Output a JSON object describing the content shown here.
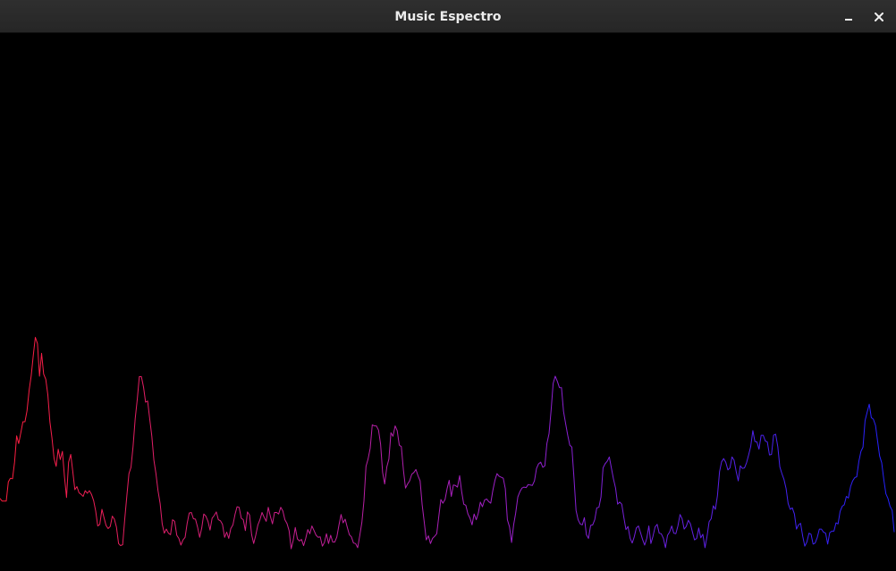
{
  "window": {
    "title": "Music Espectro",
    "minimize_icon": "minimize-icon",
    "close_icon": "close-icon"
  },
  "spectrum": {
    "background": "#000000",
    "color_start": "#ff1e3c",
    "color_mid": "#a020c8",
    "color_end": "#2222ff",
    "samples": [
      0.102,
      0.097,
      0.097,
      0.097,
      0.134,
      0.141,
      0.14,
      0.172,
      0.223,
      0.208,
      0.229,
      0.25,
      0.25,
      0.271,
      0.311,
      0.339,
      0.378,
      0.413,
      0.401,
      0.338,
      0.382,
      0.342,
      0.332,
      0.302,
      0.25,
      0.219,
      0.179,
      0.164,
      0.197,
      0.177,
      0.193,
      0.144,
      0.104,
      0.172,
      0.187,
      0.154,
      0.119,
      0.125,
      0.113,
      0.11,
      0.106,
      0.117,
      0.112,
      0.117,
      0.11,
      0.098,
      0.078,
      0.049,
      0.052,
      0.081,
      0.065,
      0.05,
      0.044,
      0.048,
      0.068,
      0.062,
      0.047,
      0.015,
      0.011,
      0.013,
      0.062,
      0.108,
      0.15,
      0.162,
      0.202,
      0.256,
      0.293,
      0.337,
      0.337,
      0.317,
      0.288,
      0.29,
      0.256,
      0.222,
      0.176,
      0.15,
      0.117,
      0.092,
      0.053,
      0.035,
      0.043,
      0.035,
      0.032,
      0.061,
      0.058,
      0.031,
      0.025,
      0.012,
      0.022,
      0.027,
      0.054,
      0.074,
      0.075,
      0.063,
      0.062,
      0.047,
      0.027,
      0.045,
      0.072,
      0.068,
      0.058,
      0.041,
      0.064,
      0.069,
      0.076,
      0.061,
      0.059,
      0.052,
      0.027,
      0.037,
      0.025,
      0.044,
      0.051,
      0.071,
      0.086,
      0.085,
      0.064,
      0.061,
      0.04,
      0.076,
      0.07,
      0.032,
      0.015,
      0.031,
      0.051,
      0.061,
      0.075,
      0.066,
      0.058,
      0.085,
      0.068,
      0.053,
      0.075,
      0.075,
      0.072,
      0.085,
      0.078,
      0.061,
      0.054,
      0.04,
      0.005,
      0.021,
      0.046,
      0.024,
      0.02,
      0.023,
      0.011,
      0.025,
      0.042,
      0.034,
      0.049,
      0.04,
      0.031,
      0.027,
      0.028,
      0.01,
      0.017,
      0.034,
      0.015,
      0.031,
      0.018,
      0.018,
      0.028,
      0.051,
      0.071,
      0.055,
      0.062,
      0.046,
      0.032,
      0.028,
      0.016,
      0.015,
      0.007,
      0.03,
      0.056,
      0.097,
      0.164,
      0.178,
      0.199,
      0.244,
      0.242,
      0.242,
      0.234,
      0.207,
      0.152,
      0.13,
      0.163,
      0.178,
      0.229,
      0.222,
      0.242,
      0.233,
      0.205,
      0.202,
      0.156,
      0.122,
      0.13,
      0.136,
      0.149,
      0.152,
      0.158,
      0.146,
      0.136,
      0.09,
      0.057,
      0.022,
      0.03,
      0.015,
      0.025,
      0.029,
      0.034,
      0.067,
      0.1,
      0.093,
      0.1,
      0.121,
      0.137,
      0.106,
      0.128,
      0.127,
      0.124,
      0.146,
      0.115,
      0.091,
      0.089,
      0.072,
      0.064,
      0.051,
      0.072,
      0.061,
      0.074,
      0.095,
      0.086,
      0.099,
      0.101,
      0.096,
      0.093,
      0.118,
      0.137,
      0.15,
      0.145,
      0.143,
      0.141,
      0.121,
      0.061,
      0.047,
      0.017,
      0.051,
      0.074,
      0.105,
      0.115,
      0.122,
      0.124,
      0.123,
      0.129,
      0.128,
      0.127,
      0.136,
      0.16,
      0.169,
      0.172,
      0.162,
      0.165,
      0.208,
      0.227,
      0.272,
      0.324,
      0.338,
      0.328,
      0.316,
      0.316,
      0.27,
      0.246,
      0.224,
      0.205,
      0.201,
      0.141,
      0.079,
      0.061,
      0.053,
      0.051,
      0.065,
      0.032,
      0.025,
      0.05,
      0.051,
      0.061,
      0.084,
      0.085,
      0.105,
      0.161,
      0.169,
      0.174,
      0.182,
      0.161,
      0.14,
      0.122,
      0.091,
      0.095,
      0.091,
      0.065,
      0.042,
      0.048,
      0.025,
      0.016,
      0.028,
      0.045,
      0.049,
      0.036,
      0.023,
      0.012,
      0.025,
      0.049,
      0.015,
      0.029,
      0.047,
      0.052,
      0.035,
      0.034,
      0.025,
      0.007,
      0.031,
      0.037,
      0.049,
      0.035,
      0.034,
      0.049,
      0.071,
      0.063,
      0.043,
      0.048,
      0.06,
      0.053,
      0.037,
      0.022,
      0.025,
      0.045,
      0.026,
      0.033,
      0.007,
      0.029,
      0.057,
      0.063,
      0.088,
      0.081,
      0.107,
      0.154,
      0.173,
      0.179,
      0.172,
      0.157,
      0.161,
      0.182,
      0.176,
      0.154,
      0.136,
      0.165,
      0.16,
      0.161,
      0.171,
      0.186,
      0.202,
      0.233,
      0.212,
      0.211,
      0.197,
      0.224,
      0.224,
      0.213,
      0.211,
      0.186,
      0.187,
      0.224,
      0.226,
      0.202,
      0.163,
      0.15,
      0.139,
      0.121,
      0.092,
      0.081,
      0.084,
      0.072,
      0.043,
      0.051,
      0.054,
      0.029,
      0.01,
      0.018,
      0.035,
      0.033,
      0.014,
      0.016,
      0.027,
      0.043,
      0.043,
      0.037,
      0.035,
      0.014,
      0.036,
      0.039,
      0.039,
      0.055,
      0.053,
      0.077,
      0.087,
      0.09,
      0.106,
      0.103,
      0.125,
      0.136,
      0.142,
      0.144,
      0.174,
      0.193,
      0.201,
      0.252,
      0.269,
      0.284,
      0.258,
      0.255,
      0.243,
      0.213,
      0.184,
      0.171,
      0.138,
      0.111,
      0.102,
      0.087,
      0.079,
      0.037
    ]
  }
}
